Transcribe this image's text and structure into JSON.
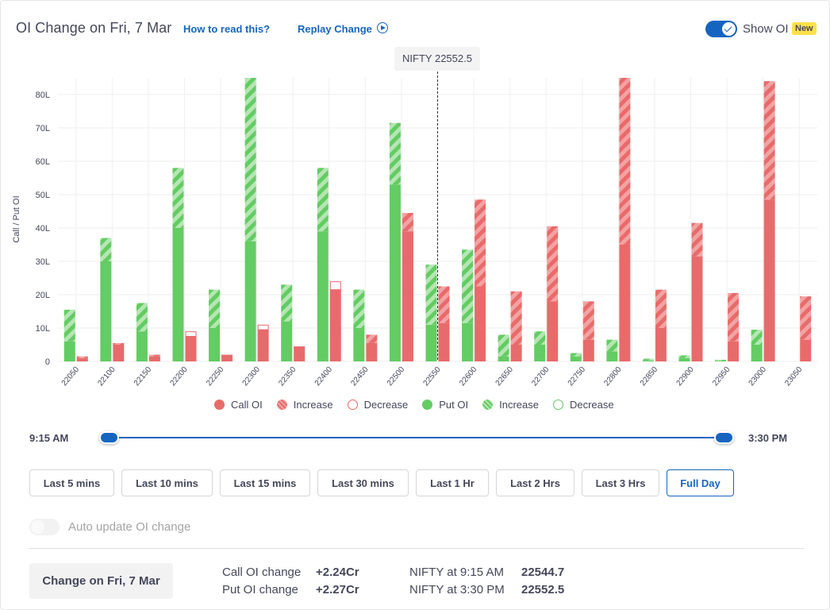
{
  "header": {
    "title": "OI Change on Fri, 7 Mar",
    "how_to_read": "How to read this?",
    "replay": "Replay Change",
    "show_oi_label": "Show OI",
    "new_badge": "New"
  },
  "tooltip": {
    "text": "NIFTY 22552.5"
  },
  "colors": {
    "call": "#e86b6b",
    "call_light": "#f2a3a3",
    "put": "#63cc63",
    "put_light": "#b5e6b2",
    "accent": "#1565c0"
  },
  "chart_data": {
    "type": "bar",
    "ylabel": "Call / Put OI",
    "yticks": [
      "0",
      "10L",
      "20L",
      "30L",
      "40L",
      "50L",
      "60L",
      "70L",
      "80L"
    ],
    "ylim": [
      0,
      85
    ],
    "grid": true,
    "marker_strike": "22550",
    "categories": [
      "22050",
      "22100",
      "22150",
      "22200",
      "22250",
      "22300",
      "22350",
      "22400",
      "22450",
      "22500",
      "22550",
      "22600",
      "22650",
      "22700",
      "22750",
      "22800",
      "22850",
      "22900",
      "22950",
      "23000",
      "23050"
    ],
    "put_base": [
      6,
      30,
      9,
      40,
      10,
      36,
      12,
      39,
      10,
      53,
      11,
      11.5,
      1.5,
      5,
      1.5,
      3,
      0.3,
      1,
      0.2,
      5,
      0
    ],
    "put_increase": [
      9.5,
      7,
      8.5,
      18,
      11.5,
      49.5,
      11,
      19,
      11.5,
      18.5,
      18,
      22,
      6.5,
      4,
      1,
      3.5,
      0.5,
      0.8,
      0.3,
      4.5,
      0
    ],
    "put_decrease": [
      0,
      0,
      0,
      0,
      0,
      0,
      0,
      0,
      0,
      0,
      0,
      0,
      0,
      0,
      0,
      0,
      0,
      0,
      0,
      0,
      0
    ],
    "call_base": [
      1,
      5,
      1.5,
      7.5,
      2,
      9.5,
      4.5,
      21.5,
      5.5,
      39,
      11.5,
      22.5,
      5,
      18,
      6.5,
      35,
      10,
      31.5,
      6,
      48.5,
      6.5
    ],
    "call_increase": [
      0.5,
      0.5,
      0.5,
      0,
      0,
      0,
      0,
      0,
      2.5,
      5.5,
      11,
      26,
      16,
      22.5,
      11.5,
      50,
      11.5,
      10,
      14.5,
      35.5,
      13
    ],
    "call_decrease": [
      0,
      0,
      0,
      1.5,
      0,
      1.5,
      0,
      2.5,
      0,
      0,
      0,
      0,
      0,
      0,
      0,
      0,
      0,
      0,
      0,
      0,
      0
    ]
  },
  "legend": [
    {
      "label": "Call OI",
      "kind": "call-solid"
    },
    {
      "label": "Increase",
      "kind": "call-hatch"
    },
    {
      "label": "Decrease",
      "kind": "call-outline"
    },
    {
      "label": "Put OI",
      "kind": "put-solid"
    },
    {
      "label": "Increase",
      "kind": "put-hatch"
    },
    {
      "label": "Decrease",
      "kind": "put-outline"
    }
  ],
  "slider": {
    "start": "9:15 AM",
    "end": "3:30 PM",
    "range_start_fraction": 0,
    "range_end_fraction": 1
  },
  "range_buttons": [
    "Last 5 mins",
    "Last 10 mins",
    "Last 15 mins",
    "Last 30 mins",
    "Last 1 Hr",
    "Last 2 Hrs",
    "Last 3 Hrs",
    "Full Day"
  ],
  "active_range": "Full Day",
  "auto_update": {
    "label": "Auto update OI change",
    "enabled": false
  },
  "summary": {
    "change_button": "Change on Fri, 7 Mar",
    "call_label": "Call OI change",
    "call_value": "+2.24Cr",
    "put_label": "Put OI change",
    "put_value": "+2.27Cr",
    "nifty_start_label": "NIFTY at 9:15 AM",
    "nifty_start_value": "22544.7",
    "nifty_end_label": "NIFTY at 3:30 PM",
    "nifty_end_value": "22552.5"
  }
}
